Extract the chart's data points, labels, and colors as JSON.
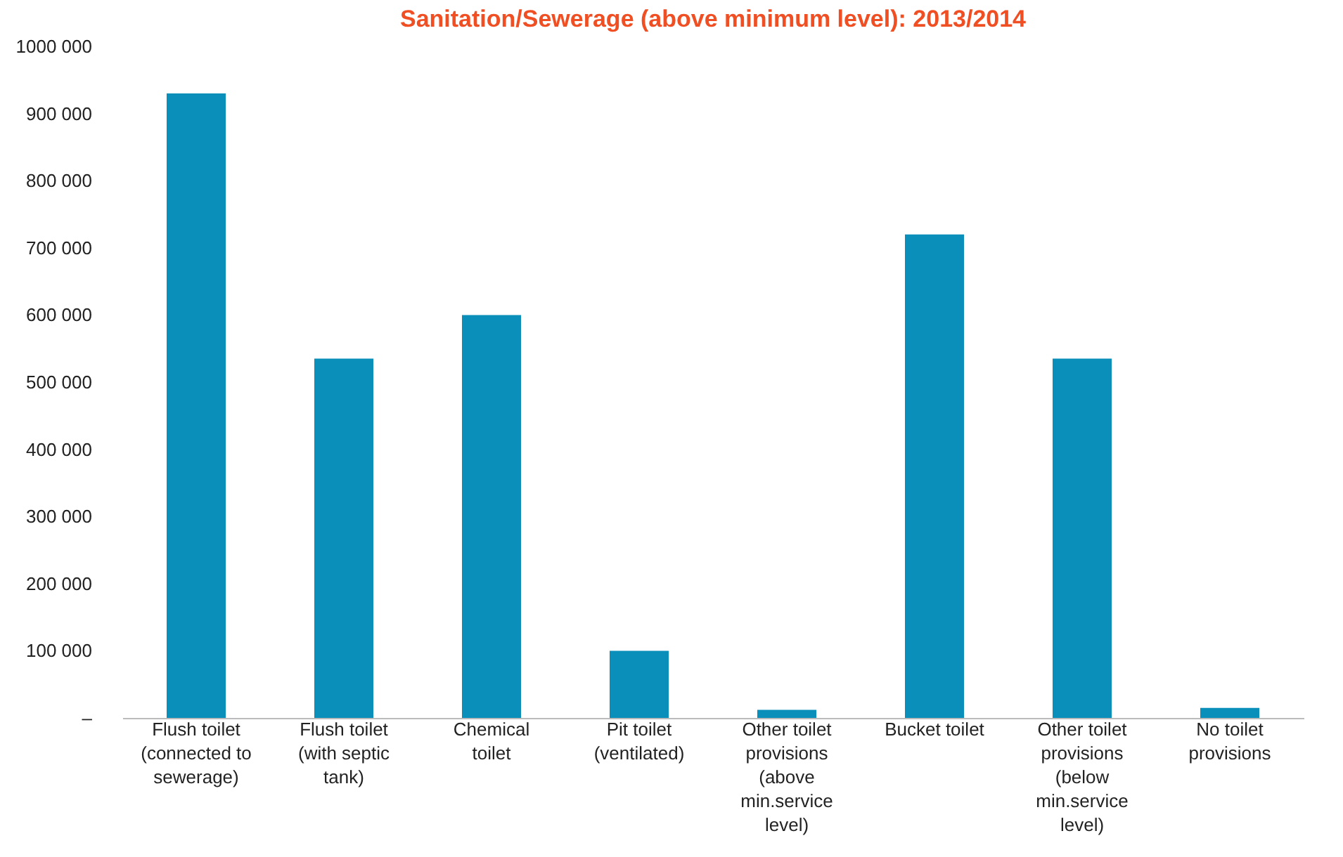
{
  "chart_data": {
    "type": "bar",
    "title": "Sanitation/Sewerage (above minimum level): 2013/2014",
    "categories": [
      "Flush toilet (connected to sewerage)",
      "Flush toilet (with septic tank)",
      "Chemical toilet",
      "Pit toilet (ventilated)",
      "Other toilet provisions (above min.service level)",
      "Bucket toilet",
      "Other toilet provisions (below min.service level)",
      "No toilet provisions"
    ],
    "values": [
      930000,
      535000,
      600000,
      100000,
      12000,
      720000,
      535000,
      15000
    ],
    "color": "#0a8fbb",
    "ylim": [
      0,
      1000000
    ],
    "yticks": [
      {
        "value": 0,
        "label": "–"
      },
      {
        "value": 100000,
        "label": "100 000"
      },
      {
        "value": 200000,
        "label": "200 000"
      },
      {
        "value": 300000,
        "label": "300 000"
      },
      {
        "value": 400000,
        "label": "400 000"
      },
      {
        "value": 500000,
        "label": "500 000"
      },
      {
        "value": 600000,
        "label": "600 000"
      },
      {
        "value": 700000,
        "label": "700 000"
      },
      {
        "value": 800000,
        "label": "800 000"
      },
      {
        "value": 900000,
        "label": "900 000"
      },
      {
        "value": 1000000,
        "label": "1000 000"
      }
    ],
    "grid": false
  }
}
